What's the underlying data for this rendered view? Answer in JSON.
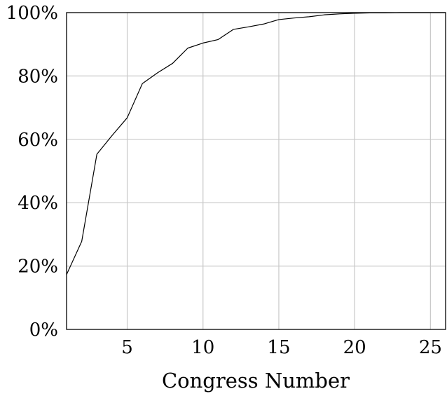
{
  "chart_data": {
    "type": "line",
    "title": "",
    "xlabel": "Congress Number",
    "ylabel": "",
    "xlim": [
      1,
      26
    ],
    "ylim": [
      0,
      100
    ],
    "grid": true,
    "legend": "none",
    "x_ticks": [
      {
        "value": 5,
        "label": "5"
      },
      {
        "value": 10,
        "label": "10"
      },
      {
        "value": 15,
        "label": "15"
      },
      {
        "value": 20,
        "label": "20"
      },
      {
        "value": 25,
        "label": "25"
      }
    ],
    "y_ticks": [
      {
        "value": 0,
        "label": "0%"
      },
      {
        "value": 20,
        "label": "20%"
      },
      {
        "value": 40,
        "label": "40%"
      },
      {
        "value": 60,
        "label": "60%"
      },
      {
        "value": 80,
        "label": "80%"
      },
      {
        "value": 100,
        "label": "100%"
      }
    ],
    "series": [
      {
        "color": "#000000",
        "x": [
          1,
          2,
          3,
          4,
          5,
          6,
          7,
          8,
          9,
          10,
          11,
          12,
          13,
          14,
          15,
          16,
          17,
          18,
          19,
          20,
          21,
          22,
          23,
          24,
          25,
          26
        ],
        "y": [
          17.3,
          27.8,
          55.3,
          61.2,
          66.8,
          77.6,
          81.0,
          84.0,
          88.8,
          90.4,
          91.5,
          94.7,
          95.5,
          96.4,
          97.8,
          98.3,
          98.7,
          99.3,
          99.6,
          99.8,
          99.9,
          99.9,
          100,
          100,
          100,
          100
        ]
      }
    ]
  }
}
